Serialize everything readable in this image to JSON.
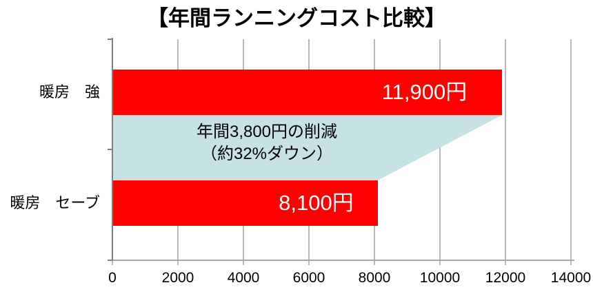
{
  "chart_data": {
    "type": "bar",
    "orientation": "horizontal",
    "title": "【年間ランニングコスト比較】",
    "categories": [
      "暖房　強",
      "暖房　セーブ"
    ],
    "values": [
      11900,
      8100
    ],
    "value_labels": [
      "11,900円",
      "8,100円"
    ],
    "xlim": [
      0,
      14000
    ],
    "x_ticks": [
      0,
      2000,
      4000,
      6000,
      8000,
      10000,
      12000,
      14000
    ],
    "grid": true,
    "legend": false,
    "annotation": {
      "line1": "年間3,800円の削減",
      "line2": "（約32%ダウン）"
    },
    "colors": {
      "bar": "#fe0000",
      "value_text": "#ffffff",
      "annotation_fill": "#c6e2e4",
      "gridline": "#a6a6a6",
      "axis": "#7f7f7f",
      "text": "#000000"
    }
  }
}
